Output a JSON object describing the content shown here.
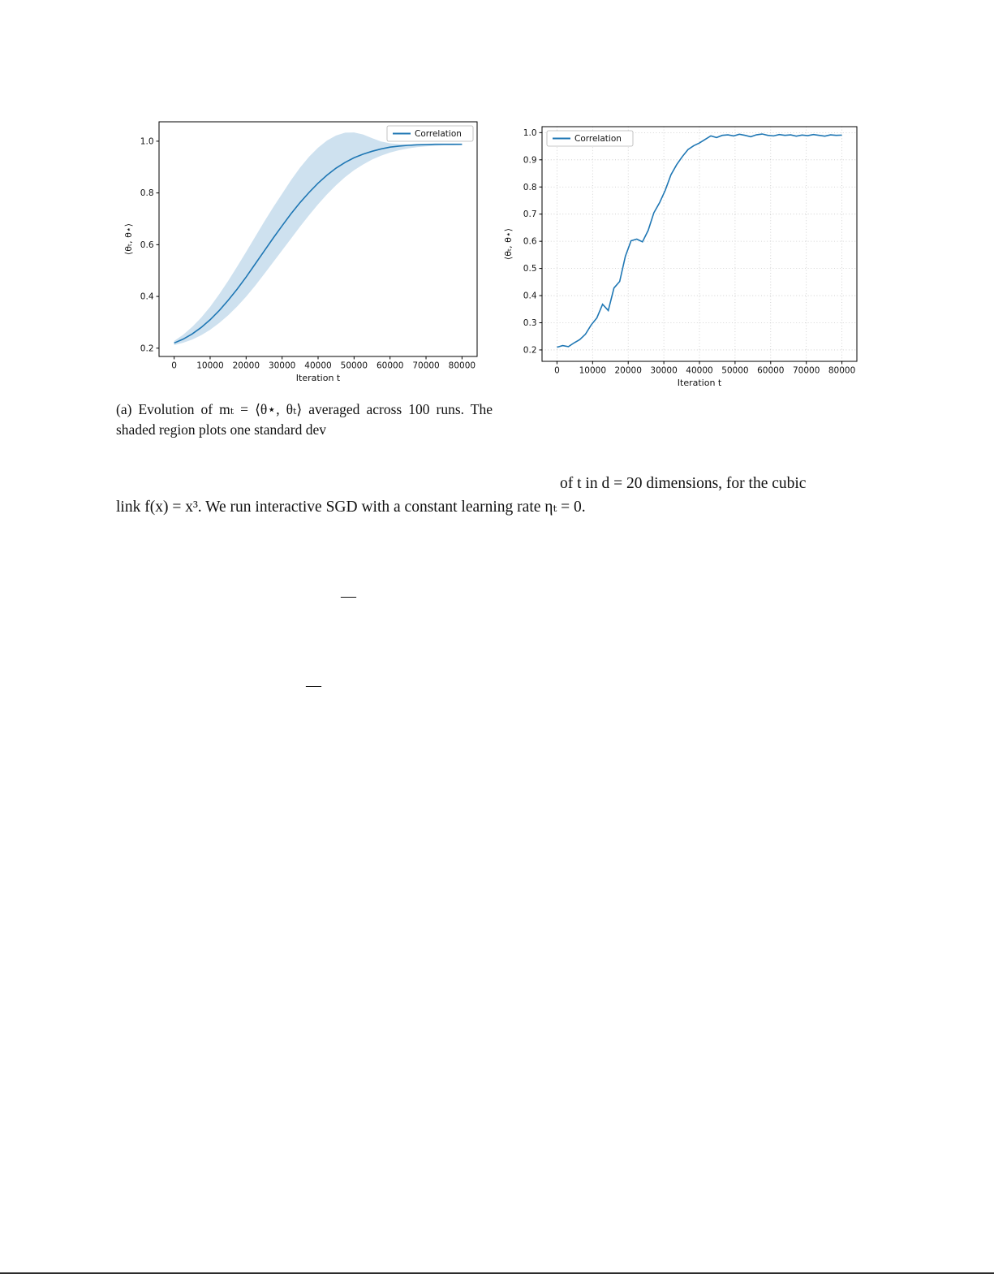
{
  "page": {
    "caption_a": "(a) Evolution of mₜ = ⟨θ⋆, θₜ⟩ averaged across 100 runs.  The shaded region plots one standard dev",
    "body_line1": "of t in d = 20 dimensions, for the cubic",
    "body_line2": "link f(x) = x³. We run interactive SGD with a constant learning rate ηₜ = 0.",
    "dash1": "—",
    "dash2": "—"
  },
  "colors": {
    "line": "#1f77b4",
    "band": "#1f77b4",
    "grid": "#c8c8c8",
    "frame": "#000000",
    "text": "#111111",
    "legend_border": "#b5b5b5"
  },
  "chart_data": [
    {
      "type": "line",
      "title": "",
      "legend": "Correlation",
      "legend_pos": "upper-right",
      "xlabel": "Iteration t",
      "ylabel": "⟨θₜ, θ⋆⟩",
      "xlim": [
        -4200,
        84200
      ],
      "ylim": [
        0.168,
        1.075
      ],
      "xticks": [
        0,
        10000,
        20000,
        30000,
        40000,
        50000,
        60000,
        70000,
        80000
      ],
      "yticks": [
        0.2,
        0.4,
        0.6,
        0.8,
        1.0
      ],
      "grid": false,
      "has_band": true,
      "x": [
        0,
        2500,
        5000,
        7500,
        10000,
        12500,
        15000,
        17500,
        20000,
        22500,
        25000,
        27500,
        30000,
        32500,
        35000,
        37500,
        40000,
        42500,
        45000,
        47500,
        50000,
        52500,
        55000,
        57500,
        60000,
        62500,
        65000,
        67500,
        70000,
        72500,
        75000,
        77500,
        80000
      ],
      "y": [
        0.22,
        0.235,
        0.255,
        0.28,
        0.31,
        0.345,
        0.385,
        0.428,
        0.475,
        0.525,
        0.575,
        0.625,
        0.673,
        0.72,
        0.763,
        0.802,
        0.838,
        0.869,
        0.896,
        0.918,
        0.936,
        0.95,
        0.961,
        0.97,
        0.977,
        0.981,
        0.984,
        0.986,
        0.987,
        0.988,
        0.988,
        0.988,
        0.988
      ],
      "band_lower": [
        0.212,
        0.221,
        0.233,
        0.25,
        0.271,
        0.297,
        0.327,
        0.361,
        0.399,
        0.441,
        0.486,
        0.532,
        0.578,
        0.624,
        0.67,
        0.714,
        0.756,
        0.795,
        0.83,
        0.861,
        0.888,
        0.91,
        0.929,
        0.944,
        0.956,
        0.965,
        0.972,
        0.977,
        0.98,
        0.982,
        0.984,
        0.984,
        0.985
      ],
      "band_upper": [
        0.228,
        0.252,
        0.282,
        0.318,
        0.36,
        0.408,
        0.46,
        0.515,
        0.572,
        0.63,
        0.688,
        0.744,
        0.797,
        0.85,
        0.898,
        0.94,
        0.975,
        1.003,
        1.022,
        1.033,
        1.034,
        1.026,
        1.012,
        0.999,
        0.992,
        0.989,
        0.988,
        0.988,
        0.988,
        0.989,
        0.989,
        0.989,
        0.989
      ]
    },
    {
      "type": "line",
      "title": "",
      "legend": "Correlation",
      "legend_pos": "upper-left",
      "xlabel": "Iteration t",
      "ylabel": "⟨θₜ, θ⋆⟩",
      "xlim": [
        -4200,
        84200
      ],
      "ylim": [
        0.158,
        1.022
      ],
      "xticks": [
        0,
        10000,
        20000,
        30000,
        40000,
        50000,
        60000,
        70000,
        80000
      ],
      "yticks": [
        0.2,
        0.3,
        0.4,
        0.5,
        0.6,
        0.7,
        0.8,
        0.9,
        1.0
      ],
      "grid": true,
      "has_band": false,
      "x": [
        0,
        1600,
        3200,
        4800,
        6400,
        8000,
        9600,
        11200,
        12800,
        14400,
        16000,
        17600,
        19200,
        20800,
        22400,
        24000,
        25600,
        27200,
        28800,
        30400,
        32000,
        33600,
        35200,
        36800,
        38400,
        40000,
        41600,
        43200,
        44800,
        46400,
        48000,
        49600,
        51200,
        52800,
        54400,
        56000,
        57600,
        59200,
        60800,
        62400,
        64000,
        65600,
        67200,
        68800,
        70400,
        72000,
        73600,
        75200,
        76800,
        78400,
        80000
      ],
      "y": [
        0.21,
        0.216,
        0.212,
        0.226,
        0.238,
        0.258,
        0.292,
        0.318,
        0.368,
        0.345,
        0.428,
        0.452,
        0.545,
        0.602,
        0.608,
        0.598,
        0.64,
        0.705,
        0.742,
        0.788,
        0.845,
        0.882,
        0.912,
        0.938,
        0.952,
        0.962,
        0.975,
        0.988,
        0.982,
        0.99,
        0.992,
        0.988,
        0.994,
        0.99,
        0.985,
        0.992,
        0.995,
        0.99,
        0.988,
        0.993,
        0.99,
        0.992,
        0.987,
        0.991,
        0.989,
        0.993,
        0.99,
        0.987,
        0.992,
        0.99,
        0.991
      ]
    }
  ]
}
